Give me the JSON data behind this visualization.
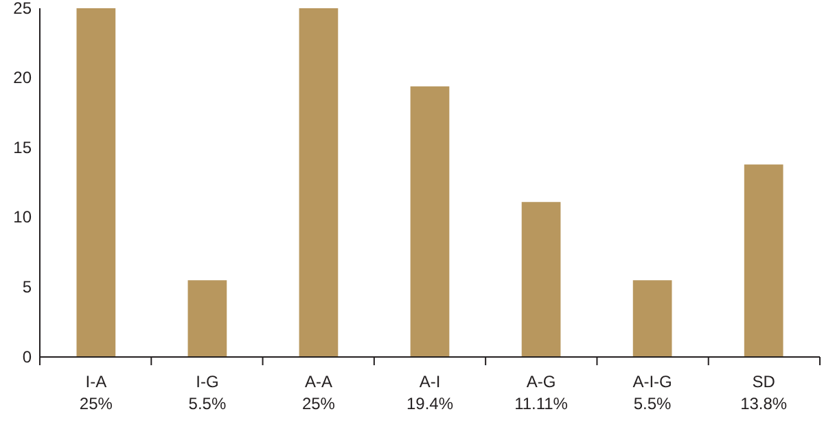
{
  "chart_data": {
    "type": "bar",
    "categories": [
      "I-A",
      "I-G",
      "A-A",
      "A-I",
      "A-G",
      "A-I-G",
      "SD"
    ],
    "values": [
      25,
      5.5,
      25,
      19.4,
      11.11,
      5.5,
      13.8
    ],
    "value_labels": [
      "25%",
      "5.5%",
      "25%",
      "19.4%",
      "11.11%",
      "5.5%",
      "13.8%"
    ],
    "color": "#b8975e",
    "ylim": [
      0,
      25
    ],
    "yticks": [
      0,
      5,
      10,
      15,
      20,
      25
    ],
    "grid": false
  }
}
